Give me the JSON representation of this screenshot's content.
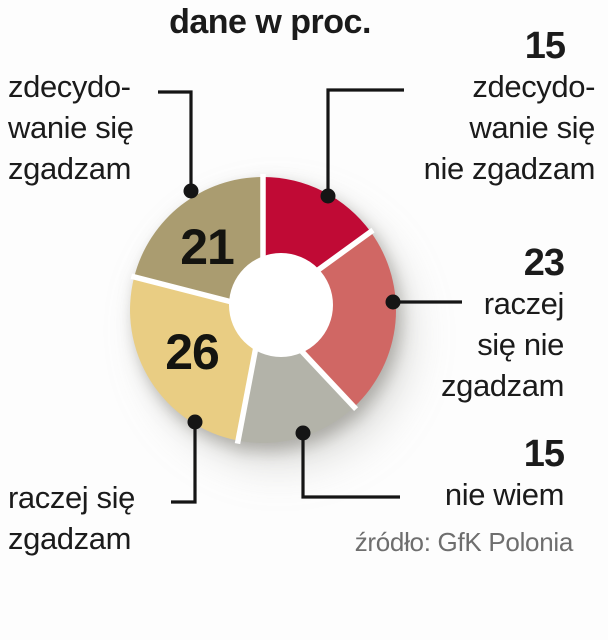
{
  "title": "dane w proc.",
  "source": "źródło: GfK Polonia",
  "styles": {
    "text_color": "#1b1b1b",
    "source_text_color": "#6e6e6e",
    "background": "#fdfdfd",
    "gap_color": "#ffffff",
    "connector_color": "#151515"
  },
  "chart_data": {
    "type": "pie",
    "subtype": "donut",
    "title": "dane w proc.",
    "unit": "percent",
    "direction": "clockwise",
    "start_angle_deg": 0,
    "total": 100,
    "source": "źródło: GfK Polonia",
    "segments": [
      {
        "label": "zdecydowanie się nie zgadzam",
        "value": 15,
        "color": "#c00a35"
      },
      {
        "label": "raczej się nie zgadzam",
        "value": 23,
        "color": "#d06764"
      },
      {
        "label": "nie wiem",
        "value": 15,
        "color": "#b3b3a9"
      },
      {
        "label": "raczej się zgadzam",
        "value": 26,
        "color": "#e9cd83"
      },
      {
        "label": "zdecydowanie się zgadzam",
        "value": 21,
        "color": "#aa9c70"
      }
    ]
  },
  "callouts": {
    "strong_agree": {
      "lines": [
        "zdecydo-",
        "wanie się",
        "zgadzam"
      ]
    },
    "strong_disagree": {
      "value": "15",
      "lines": [
        "zdecydo-",
        "wanie się",
        "nie zgadzam"
      ]
    },
    "rather_disagree": {
      "value": "23",
      "lines": [
        "raczej",
        "się nie",
        "zgadzam"
      ]
    },
    "dont_know": {
      "value": "15",
      "lines": [
        "nie wiem"
      ]
    },
    "rather_agree": {
      "lines": [
        "raczej się",
        "zgadzam"
      ]
    }
  }
}
